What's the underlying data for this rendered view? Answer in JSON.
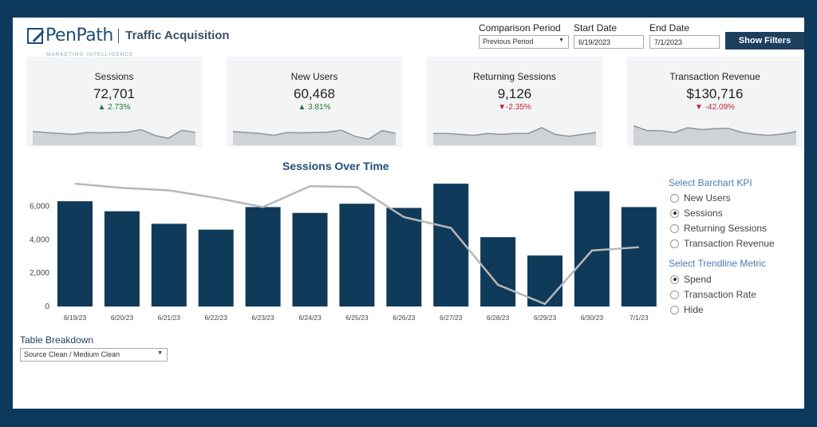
{
  "brand": {
    "name": "PenPath",
    "tagline": "MARKETING INTELLIGENCE",
    "page_title": "Traffic Acquisition"
  },
  "filters": {
    "comparison_label": "Comparison Period",
    "comparison_value": "Previous Period",
    "start_label": "Start Date",
    "start_value": "6/19/2023",
    "end_label": "End Date",
    "end_value": "7/1/2023",
    "show_filters_label": "Show Filters"
  },
  "kpis": [
    {
      "title": "Sessions",
      "value": "72,701",
      "change": "▲ 2.73%",
      "direction": "up",
      "spark": [
        0.55,
        0.5,
        0.45,
        0.4,
        0.5,
        0.48,
        0.5,
        0.52,
        0.65,
        0.35,
        0.2,
        0.62,
        0.5
      ]
    },
    {
      "title": "New Users",
      "value": "60,468",
      "change": "▲ 3.81%",
      "direction": "up",
      "spark": [
        0.55,
        0.5,
        0.45,
        0.35,
        0.5,
        0.48,
        0.5,
        0.52,
        0.62,
        0.3,
        0.15,
        0.6,
        0.45
      ]
    },
    {
      "title": "Returning Sessions",
      "value": "9,126",
      "change": "▼-2.35%",
      "direction": "down",
      "spark": [
        0.45,
        0.45,
        0.4,
        0.35,
        0.45,
        0.4,
        0.45,
        0.45,
        0.75,
        0.4,
        0.3,
        0.4,
        0.5
      ]
    },
    {
      "title": "Transaction Revenue",
      "value": "$130,716",
      "change": "▼ -42.09%",
      "direction": "down",
      "spark": [
        0.85,
        0.6,
        0.6,
        0.5,
        0.75,
        0.65,
        0.7,
        0.72,
        0.5,
        0.4,
        0.35,
        0.42,
        0.55
      ]
    }
  ],
  "colors": {
    "bar": "#0f3a5a",
    "trend": "#b8b8b8",
    "accent": "#4a7db3",
    "up": "#1e7a37",
    "down": "#c0233a",
    "spark_fill": "#cfd2d6",
    "spark_line": "#8f959b"
  },
  "chart_data": {
    "type": "bar",
    "title": "Sessions Over Time",
    "categories": [
      "6/19/23",
      "6/20/23",
      "6/21/23",
      "6/22/23",
      "6/23/23",
      "6/24/23",
      "6/25/23",
      "6/26/23",
      "6/27/23",
      "6/28/23",
      "6/29/23",
      "6/30/23",
      "7/1/23"
    ],
    "series": [
      {
        "name": "Sessions",
        "values": [
          6300,
          5700,
          4950,
          4600,
          5950,
          5600,
          6150,
          5900,
          7350,
          4150,
          3050,
          6900,
          5950
        ]
      }
    ],
    "trendline": [
      7350,
      7100,
      6950,
      6500,
      5950,
      7200,
      7150,
      5350,
      4700,
      1300,
      150,
      3350,
      3550
    ],
    "yticks": [
      "6,000",
      "4,000",
      "2,000",
      "0"
    ],
    "ylim": [
      0,
      7500
    ],
    "grid": false
  },
  "controls": {
    "barchart_heading": "Select Barchart KPI",
    "barchart_options": [
      "New Users",
      "Sessions",
      "Returning Sessions",
      "Transaction Revenue"
    ],
    "barchart_selected": 1,
    "trend_heading": "Select Trendline Metric",
    "trend_options": [
      "Spend",
      "Transaction Rate",
      "Hide"
    ],
    "trend_selected": 0
  },
  "table": {
    "label": "Table Breakdown",
    "value": "Source Clean / Medium Clean"
  }
}
